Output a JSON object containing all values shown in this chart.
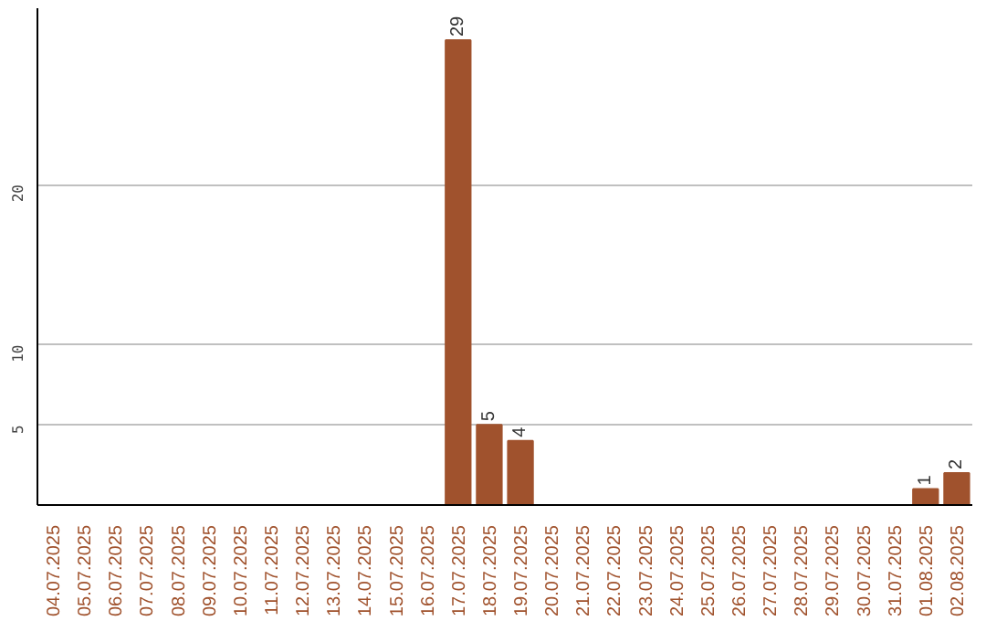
{
  "chart_data": {
    "type": "bar",
    "categories": [
      "04.07.2025",
      "05.07.2025",
      "06.07.2025",
      "07.07.2025",
      "08.07.2025",
      "09.07.2025",
      "10.07.2025",
      "11.07.2025",
      "12.07.2025",
      "13.07.2025",
      "14.07.2025",
      "15.07.2025",
      "16.07.2025",
      "17.07.2025",
      "18.07.2025",
      "19.07.2025",
      "20.07.2025",
      "21.07.2025",
      "22.07.2025",
      "23.07.2025",
      "24.07.2025",
      "25.07.2025",
      "26.07.2025",
      "27.07.2025",
      "28.07.2025",
      "29.07.2025",
      "30.07.2025",
      "31.07.2025",
      "01.08.2025",
      "02.08.2025"
    ],
    "values": [
      0,
      0,
      0,
      0,
      0,
      0,
      0,
      0,
      0,
      0,
      0,
      0,
      0,
      29,
      5,
      4,
      0,
      0,
      0,
      0,
      0,
      0,
      0,
      0,
      0,
      0,
      0,
      0,
      1,
      2
    ],
    "value_labels": [
      null,
      null,
      null,
      null,
      null,
      null,
      null,
      null,
      null,
      null,
      null,
      null,
      null,
      "29",
      "5",
      "4",
      null,
      null,
      null,
      null,
      null,
      null,
      null,
      null,
      null,
      null,
      null,
      null,
      "1",
      "2"
    ],
    "color": "#a0522d",
    "ylim": [
      0,
      31
    ],
    "yticks": [
      5,
      10,
      20
    ],
    "grid": "y"
  }
}
